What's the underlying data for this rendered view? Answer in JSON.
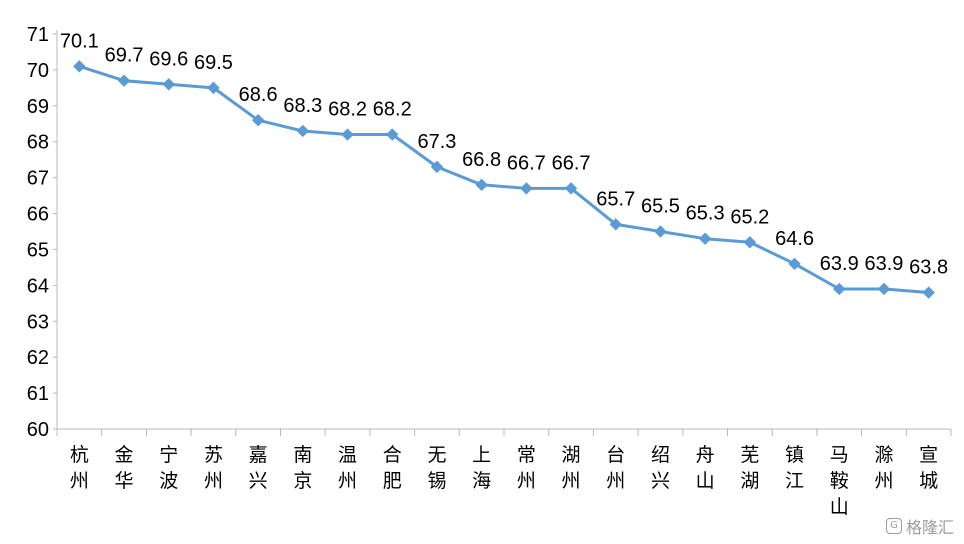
{
  "chart_data": {
    "type": "line",
    "title": "",
    "xlabel": "",
    "ylabel": "",
    "categories": [
      "杭州",
      "金华",
      "宁波",
      "苏州",
      "嘉兴",
      "南京",
      "温州",
      "合肥",
      "无锡",
      "上海",
      "常州",
      "湖州",
      "台州",
      "绍兴",
      "舟山",
      "芜湖",
      "镇江",
      "马鞍山",
      "滁州",
      "宣城"
    ],
    "series": [
      {
        "values": [
          70.1,
          69.7,
          69.6,
          69.5,
          68.6,
          68.3,
          68.2,
          68.2,
          67.3,
          66.8,
          66.7,
          66.7,
          65.7,
          65.5,
          65.3,
          65.2,
          64.6,
          63.9,
          63.9,
          63.8
        ]
      }
    ],
    "ylim": [
      60,
      71
    ],
    "yticks": [
      60,
      61,
      62,
      63,
      64,
      65,
      66,
      67,
      68,
      69,
      70,
      71
    ],
    "data_labels": true,
    "grid": false,
    "legend": "none",
    "line_color": "#5b9bd5",
    "marker": "diamond"
  },
  "watermark": {
    "text": "格隆汇",
    "icon": "g-logo-icon"
  }
}
